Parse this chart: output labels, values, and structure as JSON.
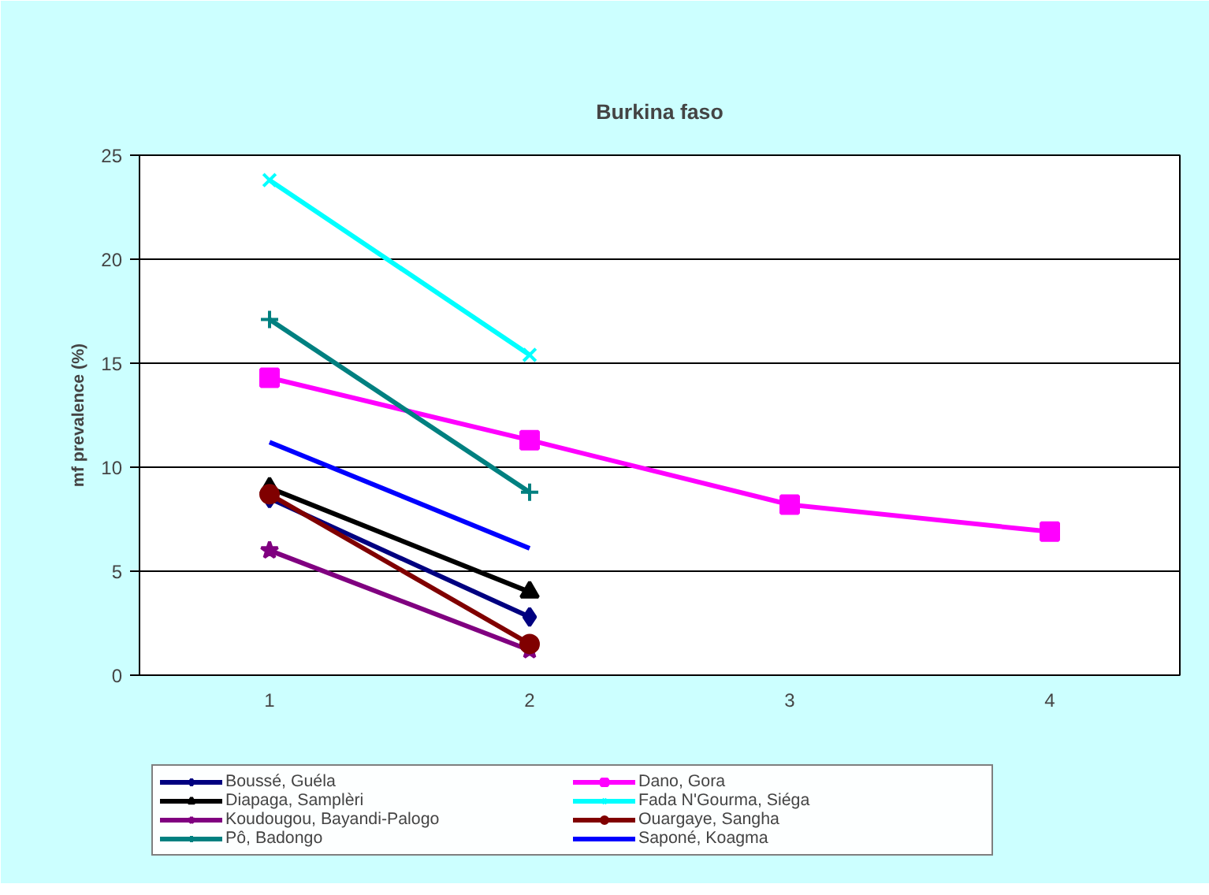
{
  "chart_data": {
    "type": "line",
    "title": "Burkina faso",
    "ylabel": "mf prevalence (%)",
    "categories": [
      "1",
      "2",
      "3",
      "4"
    ],
    "ylim": [
      0,
      25
    ],
    "yticks": [
      0,
      5,
      10,
      15,
      20,
      25
    ],
    "grid": "y",
    "legend": "bottom",
    "series": [
      {
        "name": "Boussé, Guéla",
        "color": "#000080",
        "marker": "diamond",
        "values": [
          8.5,
          2.8,
          null,
          null
        ]
      },
      {
        "name": "Dano, Gora",
        "color": "#ff00ff",
        "marker": "square",
        "values": [
          14.3,
          11.3,
          8.2,
          6.9
        ]
      },
      {
        "name": "Diapaga, Samplèri",
        "color": "#000000",
        "marker": "triangle",
        "values": [
          9.0,
          4.0,
          null,
          null
        ]
      },
      {
        "name": "Fada N'Gourma, Siéga",
        "color": "#00ffff",
        "marker": "cross",
        "values": [
          23.8,
          15.4,
          null,
          null
        ]
      },
      {
        "name": "Koudougou, Bayandi-Palogo",
        "color": "#800080",
        "marker": "star",
        "values": [
          6.0,
          1.2,
          null,
          null
        ]
      },
      {
        "name": "Ouargaye, Sangha",
        "color": "#800000",
        "marker": "circle",
        "values": [
          8.7,
          1.5,
          null,
          null
        ]
      },
      {
        "name": "Pô, Badongo",
        "color": "#008080",
        "marker": "plus",
        "values": [
          17.1,
          8.8,
          null,
          null
        ]
      },
      {
        "name": "Saponé, Koagma",
        "color": "#0000ff",
        "marker": "none",
        "values": [
          11.2,
          6.1,
          null,
          null
        ]
      }
    ]
  }
}
